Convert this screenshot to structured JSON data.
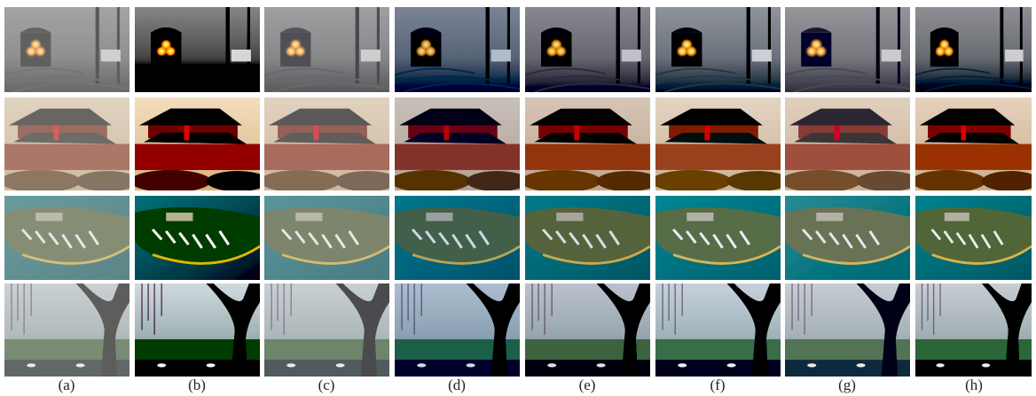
{
  "labels": [
    "(a)",
    "(b)",
    "(c)",
    "(d)",
    "(e)",
    "(f)",
    "(g)",
    "(h)"
  ]
}
